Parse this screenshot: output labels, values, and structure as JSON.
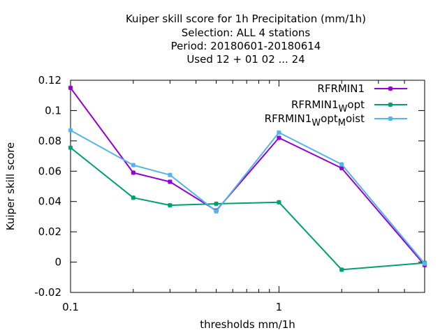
{
  "chart_data": {
    "type": "line",
    "title_lines": [
      "Kuiper skill score  for 1h Precipitation (mm/1h)",
      "Selection: ALL      4 stations",
      "Period: 20180601-20180614",
      "Used  12 + 01 02 ... 24"
    ],
    "xlabel": "thresholds mm/1h",
    "ylabel": "Kuiper skill score",
    "xscale": "log",
    "xlim": [
      0.1,
      5
    ],
    "ylim": [
      -0.02,
      0.12
    ],
    "x": [
      0.1,
      0.2,
      0.3,
      0.5,
      1,
      2,
      5
    ],
    "x_tick_labels": [
      {
        "value": 0.1,
        "label": "0.1"
      },
      {
        "value": 1,
        "label": "1"
      }
    ],
    "y_ticks": [
      {
        "value": -0.02,
        "label": "-0.02"
      },
      {
        "value": 0,
        "label": "0"
      },
      {
        "value": 0.02,
        "label": "0.02"
      },
      {
        "value": 0.04,
        "label": "0.04"
      },
      {
        "value": 0.06,
        "label": "0.06"
      },
      {
        "value": 0.08,
        "label": "0.08"
      },
      {
        "value": 0.1,
        "label": "0.1"
      },
      {
        "value": 0.12,
        "label": "0.12"
      }
    ],
    "legend_position": "top-right",
    "grid": false,
    "series": [
      {
        "name": "RFRMIN1",
        "name_parts": [
          "RFRMIN1"
        ],
        "color": "#9400d3",
        "values": [
          0.115,
          0.059,
          0.053,
          0.034,
          0.082,
          0.062,
          -0.002
        ]
      },
      {
        "name": "RFRMIN1_W opt",
        "name_parts": [
          "RFRMIN1",
          "W",
          "opt"
        ],
        "color": "#009e73",
        "values": [
          0.0755,
          0.0425,
          0.0375,
          0.0385,
          0.0395,
          -0.005,
          -0.0005
        ]
      },
      {
        "name": "RFRMIN1_W opt_M oist",
        "name_parts": [
          "RFRMIN1",
          "W",
          "opt",
          "M",
          "oist"
        ],
        "color": "#56b4e9",
        "values": [
          0.087,
          0.064,
          0.0575,
          0.0335,
          0.0855,
          0.0645,
          -0.001
        ]
      }
    ]
  }
}
